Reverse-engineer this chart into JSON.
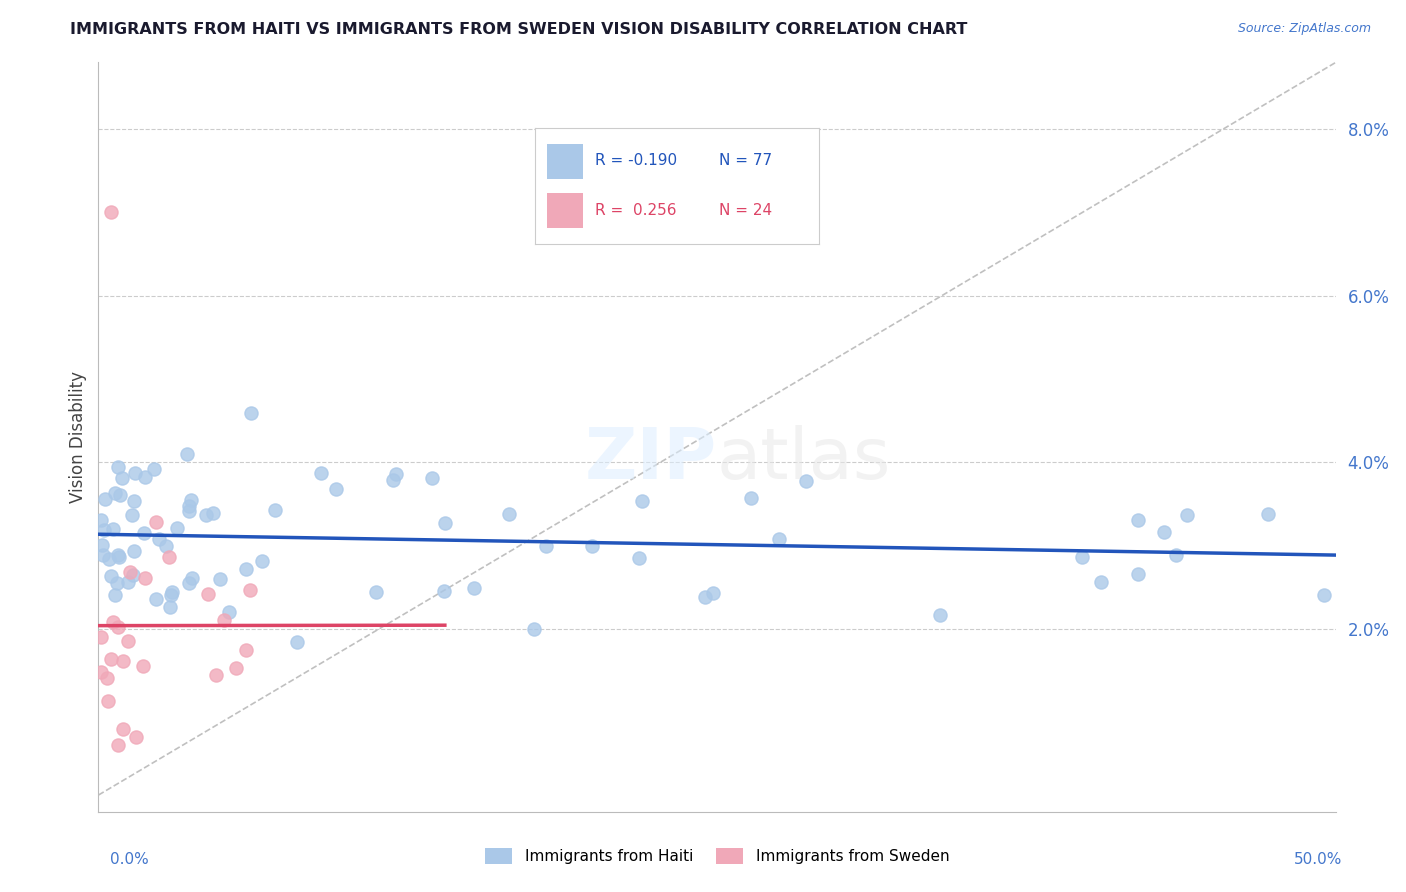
{
  "title": "IMMIGRANTS FROM HAITI VS IMMIGRANTS FROM SWEDEN VISION DISABILITY CORRELATION CHART",
  "source": "Source: ZipAtlas.com",
  "ylabel": "Vision Disability",
  "xlim": [
    0.0,
    0.5
  ],
  "ylim": [
    -0.002,
    0.088
  ],
  "watermark_zip": "ZIP",
  "watermark_atlas": "atlas",
  "legend_r_haiti": "-0.190",
  "legend_n_haiti": "77",
  "legend_r_sweden": "0.256",
  "legend_n_sweden": "24",
  "haiti_color": "#aac8e8",
  "sweden_color": "#f0a8b8",
  "haiti_line_color": "#2255bb",
  "sweden_line_color": "#dd4466",
  "diag_line_color": "#c0c0c0",
  "grid_color": "#cccccc",
  "ytick_vals": [
    0.02,
    0.04,
    0.06,
    0.08
  ],
  "ytick_labels": [
    "2.0%",
    "4.0%",
    "6.0%",
    "8.0%"
  ],
  "xtick_left_label": "0.0%",
  "xtick_right_label": "50.0%",
  "legend_label_haiti": "Immigrants from Haiti",
  "legend_label_sweden": "Immigrants from Sweden",
  "tick_color": "#4477cc",
  "title_color": "#1a1a2e",
  "source_color": "#4477cc"
}
